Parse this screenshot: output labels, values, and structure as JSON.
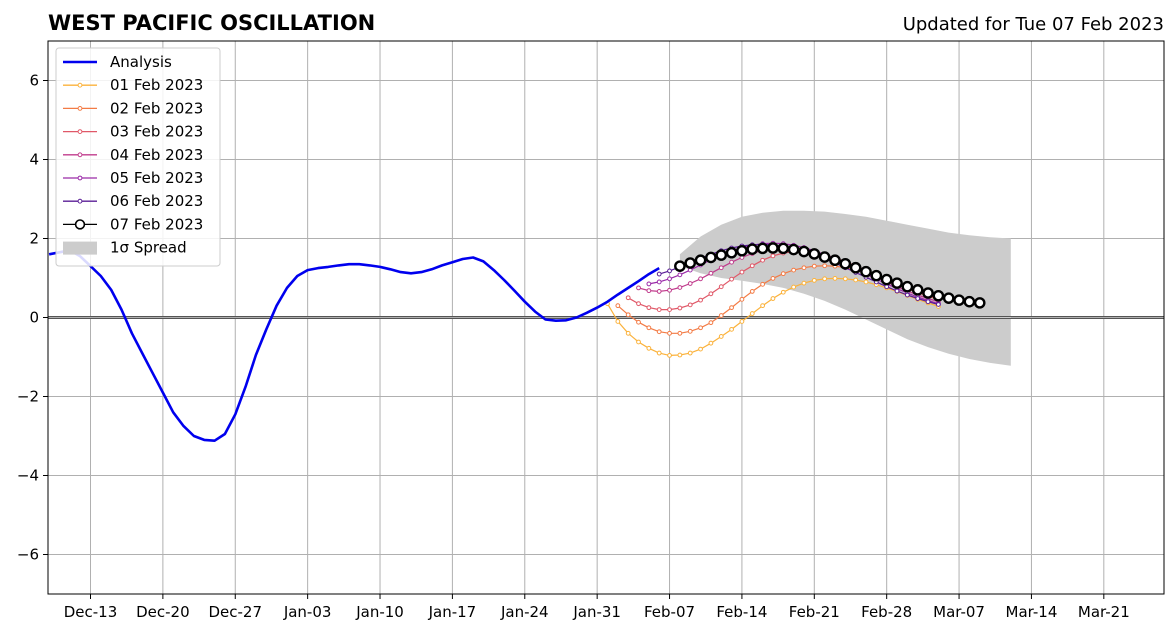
{
  "chart_data": {
    "type": "line",
    "title": "WEST PACIFIC OSCILLATION",
    "subtitle": "Updated for Tue 07 Feb 2023",
    "xlabel": "",
    "ylabel": "",
    "x_range_days_from_dec13": [
      -6,
      148
    ],
    "ylim": [
      -7,
      7
    ],
    "yticks": [
      -6,
      -4,
      -2,
      0,
      2,
      4,
      6
    ],
    "ytick_labels": [
      "−6",
      "−4",
      "−2",
      "0",
      "2",
      "4",
      "6"
    ],
    "xticks": [
      {
        "label": "Dec-13",
        "day": 0
      },
      {
        "label": "Dec-20",
        "day": 7
      },
      {
        "label": "Dec-27",
        "day": 14
      },
      {
        "label": "Jan-03",
        "day": 21
      },
      {
        "label": "Jan-10",
        "day": 28
      },
      {
        "label": "Jan-17",
        "day": 35
      },
      {
        "label": "Jan-24",
        "day": 42
      },
      {
        "label": "Jan-31",
        "day": 49
      },
      {
        "label": "Feb-07",
        "day": 56
      },
      {
        "label": "Feb-14",
        "day": 63
      },
      {
        "label": "Feb-21",
        "day": 70
      },
      {
        "label": "Feb-28",
        "day": 77
      },
      {
        "label": "Mar-07",
        "day": 84
      },
      {
        "label": "Mar-14",
        "day": 91
      },
      {
        "label": "Mar-21",
        "day": 98
      }
    ],
    "grid": true,
    "legend_position": "top-left",
    "legend": [
      "Analysis",
      "01 Feb 2023",
      "02 Feb 2023",
      "03 Feb 2023",
      "04 Feb 2023",
      "05 Feb 2023",
      "06 Feb 2023",
      "07 Feb 2023",
      "1σ Spread"
    ],
    "analysis": {
      "name": "Analysis",
      "color": "#0000ee",
      "points": [
        [
          -4,
          1.6
        ],
        [
          -3,
          1.65
        ],
        [
          -2,
          1.7
        ],
        [
          -1,
          1.55
        ],
        [
          0,
          1.3
        ],
        [
          1,
          1.05
        ],
        [
          2,
          0.7
        ],
        [
          3,
          0.2
        ],
        [
          4,
          -0.4
        ],
        [
          5,
          -0.9
        ],
        [
          6,
          -1.4
        ],
        [
          7,
          -1.9
        ],
        [
          8,
          -2.4
        ],
        [
          9,
          -2.75
        ],
        [
          10,
          -3.0
        ],
        [
          11,
          -3.1
        ],
        [
          12,
          -3.12
        ],
        [
          13,
          -2.95
        ],
        [
          14,
          -2.45
        ],
        [
          15,
          -1.75
        ],
        [
          16,
          -0.95
        ],
        [
          17,
          -0.3
        ],
        [
          18,
          0.3
        ],
        [
          19,
          0.75
        ],
        [
          20,
          1.05
        ],
        [
          21,
          1.2
        ],
        [
          22,
          1.25
        ],
        [
          23,
          1.28
        ],
        [
          24,
          1.32
        ],
        [
          25,
          1.35
        ],
        [
          26,
          1.35
        ],
        [
          27,
          1.32
        ],
        [
          28,
          1.28
        ],
        [
          29,
          1.22
        ],
        [
          30,
          1.15
        ],
        [
          31,
          1.12
        ],
        [
          32,
          1.15
        ],
        [
          33,
          1.22
        ],
        [
          34,
          1.32
        ],
        [
          35,
          1.4
        ],
        [
          36,
          1.48
        ],
        [
          37,
          1.52
        ],
        [
          38,
          1.42
        ],
        [
          39,
          1.2
        ],
        [
          40,
          0.95
        ],
        [
          41,
          0.68
        ],
        [
          42,
          0.4
        ],
        [
          43,
          0.15
        ],
        [
          44,
          -0.05
        ],
        [
          45,
          -0.08
        ],
        [
          46,
          -0.07
        ],
        [
          47,
          0.0
        ],
        [
          48,
          0.12
        ],
        [
          49,
          0.25
        ],
        [
          50,
          0.4
        ],
        [
          51,
          0.58
        ],
        [
          52,
          0.75
        ],
        [
          53,
          0.92
        ],
        [
          54,
          1.1
        ],
        [
          55,
          1.25
        ]
      ]
    },
    "forecasts": [
      {
        "name": "01 Feb 2023",
        "color": "#fbb23b",
        "start_day": 50,
        "values": [
          0.35,
          -0.1,
          -0.4,
          -0.62,
          -0.78,
          -0.9,
          -0.96,
          -0.95,
          -0.9,
          -0.8,
          -0.65,
          -0.48,
          -0.3,
          -0.1,
          0.1,
          0.3,
          0.48,
          0.64,
          0.77,
          0.87,
          0.94,
          0.98,
          0.99,
          0.98,
          0.95,
          0.9,
          0.83,
          0.75,
          0.66,
          0.56,
          0.46,
          0.37,
          0.28
        ]
      },
      {
        "name": "02 Feb 2023",
        "color": "#f37b45",
        "start_day": 51,
        "values": [
          0.3,
          0.07,
          -0.12,
          -0.26,
          -0.36,
          -0.4,
          -0.4,
          -0.35,
          -0.26,
          -0.13,
          0.05,
          0.25,
          0.46,
          0.66,
          0.84,
          0.99,
          1.11,
          1.2,
          1.26,
          1.3,
          1.31,
          1.3,
          1.26,
          1.2,
          1.12,
          1.03,
          0.93,
          0.83,
          0.73,
          0.63,
          0.54,
          0.46
        ]
      },
      {
        "name": "03 Feb 2023",
        "color": "#e05868",
        "start_day": 52,
        "values": [
          0.5,
          0.35,
          0.25,
          0.2,
          0.2,
          0.24,
          0.32,
          0.44,
          0.6,
          0.78,
          0.97,
          1.15,
          1.31,
          1.45,
          1.56,
          1.63,
          1.67,
          1.67,
          1.64,
          1.59,
          1.51,
          1.42,
          1.31,
          1.2,
          1.08,
          0.96,
          0.85,
          0.74,
          0.64,
          0.55,
          0.47
        ]
      },
      {
        "name": "04 Feb 2023",
        "color": "#c03b8c",
        "start_day": 53,
        "values": [
          0.75,
          0.68,
          0.66,
          0.69,
          0.76,
          0.86,
          0.98,
          1.12,
          1.26,
          1.4,
          1.52,
          1.62,
          1.7,
          1.75,
          1.77,
          1.77,
          1.74,
          1.68,
          1.6,
          1.5,
          1.39,
          1.27,
          1.15,
          1.02,
          0.9,
          0.78,
          0.67,
          0.57,
          0.48,
          0.4
        ]
      },
      {
        "name": "05 Feb 2023",
        "color": "#9a2aa8",
        "start_day": 54,
        "values": [
          0.85,
          0.9,
          0.98,
          1.08,
          1.2,
          1.33,
          1.46,
          1.58,
          1.69,
          1.77,
          1.83,
          1.87,
          1.88,
          1.87,
          1.83,
          1.77,
          1.69,
          1.59,
          1.48,
          1.36,
          1.23,
          1.1,
          0.97,
          0.85,
          0.73,
          0.62,
          0.52,
          0.43,
          0.35
        ]
      },
      {
        "name": "06 Feb 2023",
        "color": "#5a1d96",
        "start_day": 55,
        "values": [
          1.1,
          1.18,
          1.28,
          1.39,
          1.5,
          1.6,
          1.69,
          1.76,
          1.81,
          1.84,
          1.85,
          1.84,
          1.81,
          1.75,
          1.68,
          1.59,
          1.49,
          1.38,
          1.26,
          1.14,
          1.02,
          0.9,
          0.78,
          0.67,
          0.57,
          0.48,
          0.4,
          0.33
        ]
      },
      {
        "name": "07 Feb 2023",
        "color": "#000000",
        "start_day": 57,
        "values": [
          1.3,
          1.38,
          1.45,
          1.52,
          1.58,
          1.64,
          1.69,
          1.73,
          1.75,
          1.76,
          1.75,
          1.72,
          1.67,
          1.61,
          1.53,
          1.45,
          1.36,
          1.26,
          1.16,
          1.06,
          0.96,
          0.87,
          0.78,
          0.7,
          0.62,
          0.55,
          0.49,
          0.44,
          0.4,
          0.37
        ]
      }
    ],
    "spread": {
      "name": "1σ Spread",
      "color": "#cccccc",
      "x_days": [
        57,
        59,
        61,
        63,
        65,
        67,
        69,
        71,
        73,
        75,
        77,
        79,
        81,
        83,
        85,
        87,
        89
      ],
      "upper": [
        1.6,
        2.05,
        2.35,
        2.55,
        2.65,
        2.7,
        2.7,
        2.68,
        2.62,
        2.55,
        2.45,
        2.35,
        2.25,
        2.15,
        2.08,
        2.03,
        2.0
      ],
      "lower": [
        1.3,
        1.12,
        1.0,
        0.93,
        0.85,
        0.75,
        0.6,
        0.42,
        0.2,
        -0.05,
        -0.3,
        -0.55,
        -0.75,
        -0.92,
        -1.05,
        -1.15,
        -1.22
      ]
    }
  }
}
